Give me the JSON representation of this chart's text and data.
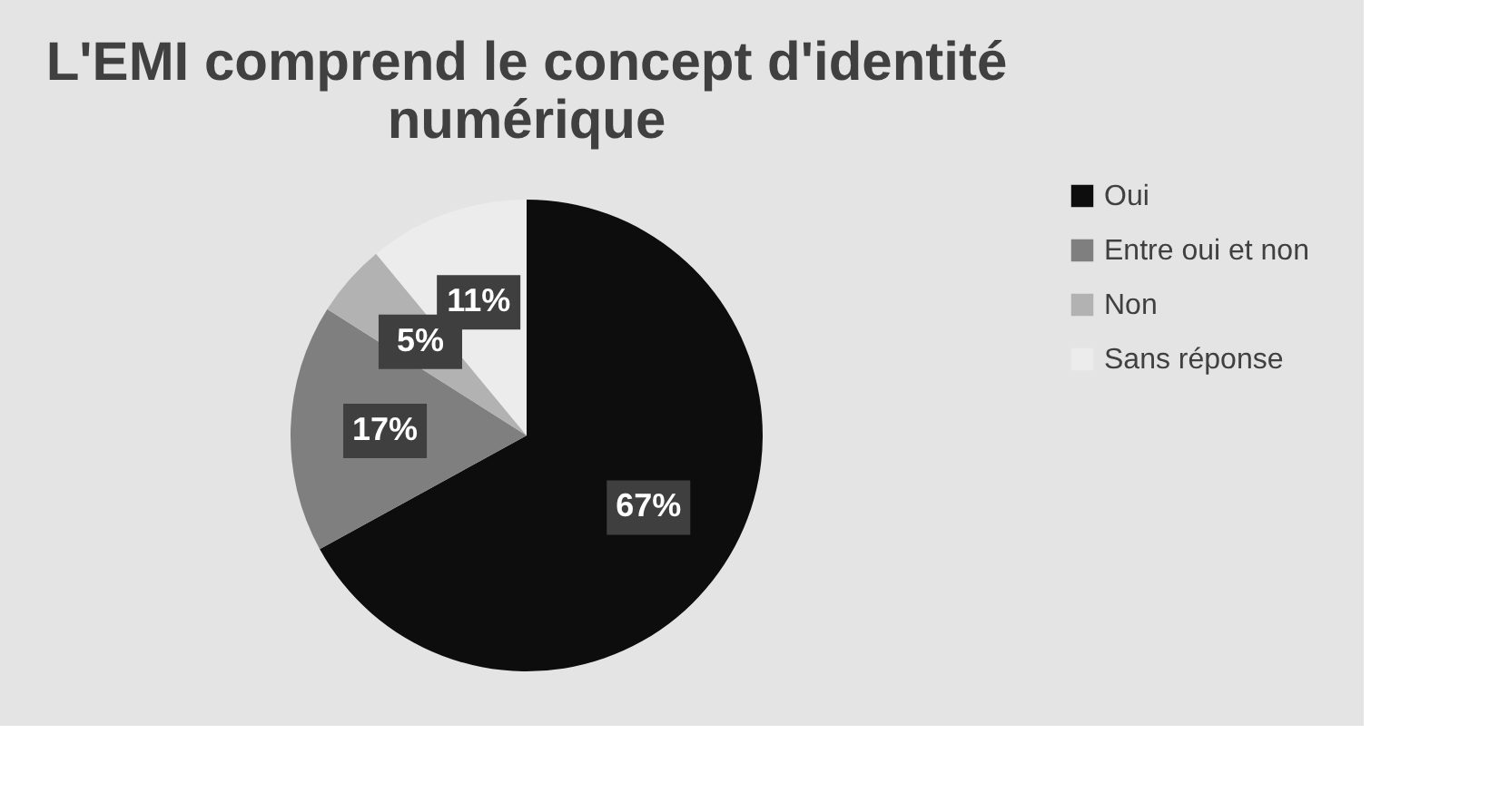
{
  "chart_data": {
    "type": "pie",
    "title": "L'EMI comprend le concept d'identité numérique",
    "categories": [
      "Oui",
      "Entre oui et non",
      "Non",
      "Sans réponse"
    ],
    "values": [
      67,
      17,
      5,
      11
    ],
    "colors": [
      "#0d0d0d",
      "#7f7f7f",
      "#b2b2b2",
      "#ececec"
    ],
    "value_labels": [
      "67%",
      "17%",
      "5%",
      "11%"
    ],
    "legend": "right"
  }
}
